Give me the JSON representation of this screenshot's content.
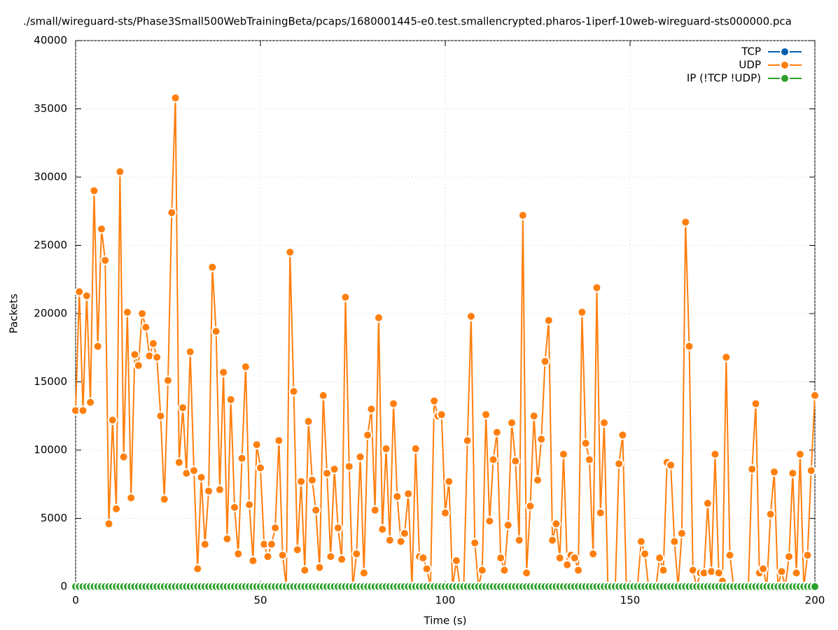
{
  "chart_data": {
    "type": "line",
    "title": "./small/wireguard-sts/Phase3Small500WebTrainingBeta/pcaps/1680001445-e0.test.smallencrypted.pharos-1iperf-10web-wireguard-sts000000.pca",
    "x_label": "Time (s)",
    "y_label": "Packets",
    "xlim": [
      0,
      200
    ],
    "xticks": [
      0,
      50,
      100,
      150,
      200
    ],
    "ylim": [
      0,
      40000
    ],
    "yticks": [
      0,
      5000,
      10000,
      15000,
      20000,
      25000,
      30000,
      35000,
      40000
    ],
    "grid": true,
    "legend": "top-right",
    "x": [
      0,
      1,
      2,
      3,
      4,
      5,
      6,
      7,
      8,
      9,
      10,
      11,
      12,
      13,
      14,
      15,
      16,
      17,
      18,
      19,
      20,
      21,
      22,
      23,
      24,
      25,
      26,
      27,
      28,
      29,
      30,
      31,
      32,
      33,
      34,
      35,
      36,
      37,
      38,
      39,
      40,
      41,
      42,
      43,
      44,
      45,
      46,
      47,
      48,
      49,
      50,
      51,
      52,
      53,
      54,
      55,
      56,
      57,
      58,
      59,
      60,
      61,
      62,
      63,
      64,
      65,
      66,
      67,
      68,
      69,
      70,
      71,
      72,
      73,
      74,
      75,
      76,
      77,
      78,
      79,
      80,
      81,
      82,
      83,
      84,
      85,
      86,
      87,
      88,
      89,
      90,
      91,
      92,
      93,
      94,
      95,
      96,
      97,
      98,
      99,
      100,
      101,
      102,
      103,
      104,
      105,
      106,
      107,
      108,
      109,
      110,
      111,
      112,
      113,
      114,
      115,
      116,
      117,
      118,
      119,
      120,
      121,
      122,
      123,
      124,
      125,
      126,
      127,
      128,
      129,
      130,
      131,
      132,
      133,
      134,
      135,
      136,
      137,
      138,
      139,
      140,
      141,
      142,
      143,
      144,
      145,
      146,
      147,
      148,
      149,
      150,
      151,
      152,
      153,
      154,
      155,
      156,
      157,
      158,
      159,
      160,
      161,
      162,
      163,
      164,
      165,
      166,
      167,
      168,
      169,
      170,
      171,
      172,
      173,
      174,
      175,
      176,
      177,
      178,
      179,
      180,
      181,
      182,
      183,
      184,
      185,
      186,
      187,
      188,
      189,
      190,
      191,
      192,
      193,
      194,
      195,
      196,
      197,
      198,
      199,
      200
    ],
    "series": [
      {
        "name": "TCP",
        "color": "#0060ad",
        "values": [
          0,
          0,
          0,
          0,
          0,
          0,
          0,
          0,
          0,
          0,
          0,
          0,
          0,
          0,
          0,
          0,
          0,
          0,
          0,
          0,
          0,
          0,
          0,
          0,
          0,
          0,
          0,
          0,
          0,
          0,
          0,
          0,
          0,
          0,
          0,
          0,
          0,
          0,
          0,
          0,
          0,
          0,
          0,
          0,
          0,
          0,
          0,
          0,
          0,
          0,
          0,
          0,
          0,
          0,
          0,
          0,
          0,
          0,
          0,
          0,
          0,
          0,
          0,
          0,
          0,
          0,
          0,
          0,
          0,
          0,
          0,
          0,
          0,
          0,
          0,
          0,
          0,
          0,
          0,
          0,
          0,
          0,
          0,
          0,
          0,
          0,
          0,
          0,
          0,
          0,
          0,
          0,
          0,
          0,
          0,
          0,
          0,
          0,
          0,
          0,
          0,
          0,
          0,
          0,
          0,
          0,
          0,
          0,
          0,
          0,
          0,
          0,
          0,
          0,
          0,
          0,
          0,
          0,
          0,
          0,
          0,
          0,
          0,
          0,
          0,
          0,
          0,
          0,
          0,
          0,
          0,
          0,
          0,
          0,
          0,
          0,
          0,
          0,
          0,
          0,
          0,
          0,
          0,
          0,
          0,
          0,
          0,
          0,
          0,
          0,
          0,
          0,
          0,
          0,
          0,
          0,
          0,
          0,
          0,
          0,
          0,
          0,
          0,
          0,
          0,
          0,
          0,
          0,
          0,
          0,
          0,
          0,
          0,
          0,
          0,
          0,
          0,
          0,
          0,
          0,
          0,
          0,
          0,
          0,
          0,
          0,
          0,
          0,
          0,
          0,
          0,
          0,
          0,
          0,
          0,
          0,
          0,
          0,
          0,
          0,
          0
        ]
      },
      {
        "name": "UDP",
        "color": "#ff7f0e",
        "values": [
          12900,
          21600,
          12900,
          21300,
          13500,
          29000,
          17600,
          26200,
          23900,
          4600,
          12200,
          5700,
          30400,
          9500,
          20100,
          6500,
          17000,
          16200,
          20000,
          19000,
          16900,
          17800,
          16800,
          12500,
          6400,
          15100,
          27400,
          35800,
          9100,
          13100,
          8300,
          17200,
          8500,
          1300,
          8000,
          3100,
          7000,
          23400,
          18700,
          7100,
          15700,
          3500,
          13700,
          5800,
          2400,
          9400,
          16100,
          6000,
          1900,
          10400,
          8700,
          3100,
          2200,
          3100,
          4300,
          10700,
          2300,
          0,
          24500,
          14300,
          2700,
          7700,
          1200,
          12100,
          7800,
          5600,
          1400,
          14000,
          8300,
          2200,
          8600,
          4300,
          2000,
          21200,
          8800,
          0,
          2400,
          9500,
          1000,
          11100,
          13000,
          5600,
          19700,
          4200,
          10100,
          3400,
          13400,
          6600,
          3300,
          3900,
          6800,
          0,
          10100,
          2200,
          2100,
          1300,
          0,
          13600,
          12500,
          12600,
          5400,
          7700,
          0,
          1900,
          0,
          0,
          10700,
          19800,
          3200,
          0,
          1200,
          12600,
          4800,
          9300,
          11300,
          2100,
          1200,
          4500,
          12000,
          9200,
          3400,
          27200,
          1000,
          5900,
          12500,
          7800,
          10800,
          16500,
          19500,
          3400,
          4600,
          2100,
          9700,
          1600,
          2300,
          2100,
          1200,
          20100,
          10500,
          9300,
          2400,
          21900,
          5400,
          12000,
          0,
          0,
          0,
          9000,
          11100,
          0,
          0,
          0,
          0,
          3300,
          2400,
          0,
          0,
          0,
          2100,
          1200,
          9100,
          8900,
          3300,
          0,
          3900,
          26700,
          17600,
          1200,
          0,
          1000,
          1000,
          6100,
          1100,
          9700,
          1000,
          400,
          16800,
          2300,
          0,
          0,
          0,
          0,
          0,
          8600,
          13400,
          1000,
          1300,
          0,
          5300,
          8400,
          0,
          1100,
          0,
          2200,
          8300,
          1000,
          9700,
          0,
          2300,
          8500,
          14000
        ]
      },
      {
        "name": "IP (!TCP  !UDP)",
        "color": "#2ca02c",
        "values": [
          0,
          0,
          0,
          0,
          0,
          0,
          0,
          0,
          0,
          0,
          0,
          0,
          0,
          0,
          0,
          0,
          0,
          0,
          0,
          0,
          0,
          0,
          0,
          0,
          0,
          0,
          0,
          0,
          0,
          0,
          0,
          0,
          0,
          0,
          0,
          0,
          0,
          0,
          0,
          0,
          0,
          0,
          0,
          0,
          0,
          0,
          0,
          0,
          0,
          0,
          0,
          0,
          0,
          0,
          0,
          0,
          0,
          0,
          0,
          0,
          0,
          0,
          0,
          0,
          0,
          0,
          0,
          0,
          0,
          0,
          0,
          0,
          0,
          0,
          0,
          0,
          0,
          0,
          0,
          0,
          0,
          0,
          0,
          0,
          0,
          0,
          0,
          0,
          0,
          0,
          0,
          0,
          0,
          0,
          0,
          0,
          0,
          0,
          0,
          0,
          0,
          0,
          0,
          0,
          0,
          0,
          0,
          0,
          0,
          0,
          0,
          0,
          0,
          0,
          0,
          0,
          0,
          0,
          0,
          0,
          0,
          0,
          0,
          0,
          0,
          0,
          0,
          0,
          0,
          0,
          0,
          0,
          0,
          0,
          0,
          0,
          0,
          0,
          0,
          0,
          0,
          0,
          0,
          0,
          0,
          0,
          0,
          0,
          0,
          0,
          0,
          0,
          0,
          0,
          0,
          0,
          0,
          0,
          0,
          0,
          0,
          0,
          0,
          0,
          0,
          0,
          0,
          0,
          0,
          0,
          0,
          0,
          0,
          0,
          0,
          0,
          0,
          0,
          0,
          0,
          0,
          0,
          0,
          0,
          0,
          0,
          0,
          0,
          0,
          0,
          0,
          0,
          0,
          0,
          0,
          0,
          0,
          0,
          0,
          0,
          0
        ]
      }
    ]
  }
}
